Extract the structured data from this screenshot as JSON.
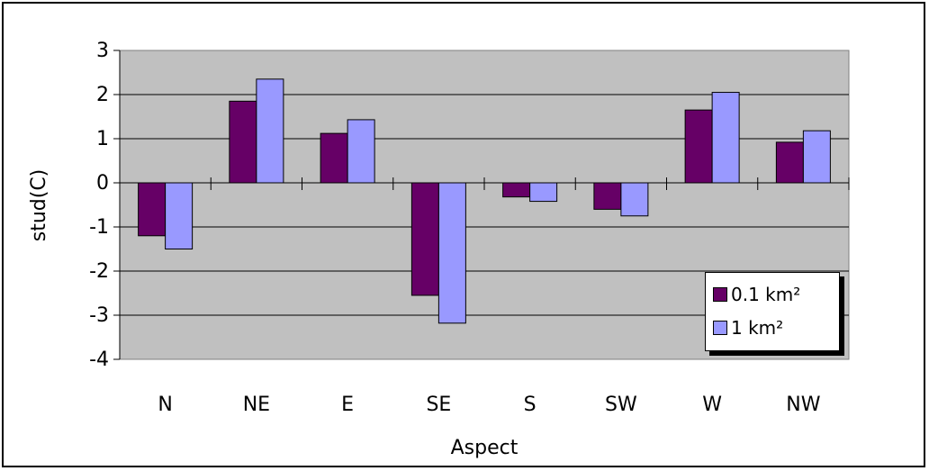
{
  "chart_data": {
    "type": "bar",
    "categories": [
      "N",
      "NE",
      "E",
      "SE",
      "S",
      "SW",
      "W",
      "NW"
    ],
    "series": [
      {
        "name": "0.1 km²",
        "values": [
          -1.2,
          1.85,
          1.12,
          -2.55,
          -0.32,
          -0.6,
          1.65,
          0.92
        ],
        "color": "#660066"
      },
      {
        "name": "1 km²",
        "values": [
          -1.5,
          2.35,
          1.43,
          -3.18,
          -0.42,
          -0.75,
          2.05,
          1.18
        ],
        "color": "#9999ff"
      }
    ],
    "xlabel": "Aspect",
    "ylabel": "stud(C)",
    "ylim": [
      -4,
      3
    ],
    "yticks": [
      "3",
      "2",
      "1",
      "0",
      "-1",
      "-2",
      "-3",
      "-4"
    ],
    "grid": true,
    "plot_background": "#c0c0c0",
    "legend_position": "bottom-right"
  }
}
